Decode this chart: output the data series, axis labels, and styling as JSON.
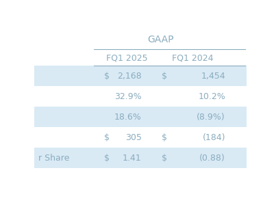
{
  "title": "GAAP",
  "col_headers": [
    "FQ1 2025",
    "FQ1 2024"
  ],
  "rows": [
    {
      "label": "",
      "col1_prefix": "$",
      "col1_value": "2,168",
      "col2_prefix": "$",
      "col2_value": "1,454",
      "shaded": true
    },
    {
      "label": "",
      "col1_prefix": "",
      "col1_value": "32.9%",
      "col2_prefix": "",
      "col2_value": "10.2%",
      "shaded": false
    },
    {
      "label": "",
      "col1_prefix": "",
      "col1_value": "18.6%",
      "col2_prefix": "",
      "col2_value": "(8.9%)",
      "shaded": true
    },
    {
      "label": "",
      "col1_prefix": "$",
      "col1_value": "305",
      "col2_prefix": "$",
      "col2_value": "(184)",
      "shaded": false
    },
    {
      "label": "r Share",
      "col1_prefix": "$",
      "col1_value": "1.41",
      "col2_prefix": "$",
      "col2_value": "(0.88)",
      "shaded": true
    }
  ],
  "bg_color": "#ffffff",
  "shaded_color": "#d9eaf5",
  "text_color": "#8aacbe",
  "header_color": "#8aacbe",
  "title_color": "#8aacbe",
  "line_color": "#8aacbe",
  "font_size": 9,
  "header_font_size": 9,
  "title_font_size": 10
}
